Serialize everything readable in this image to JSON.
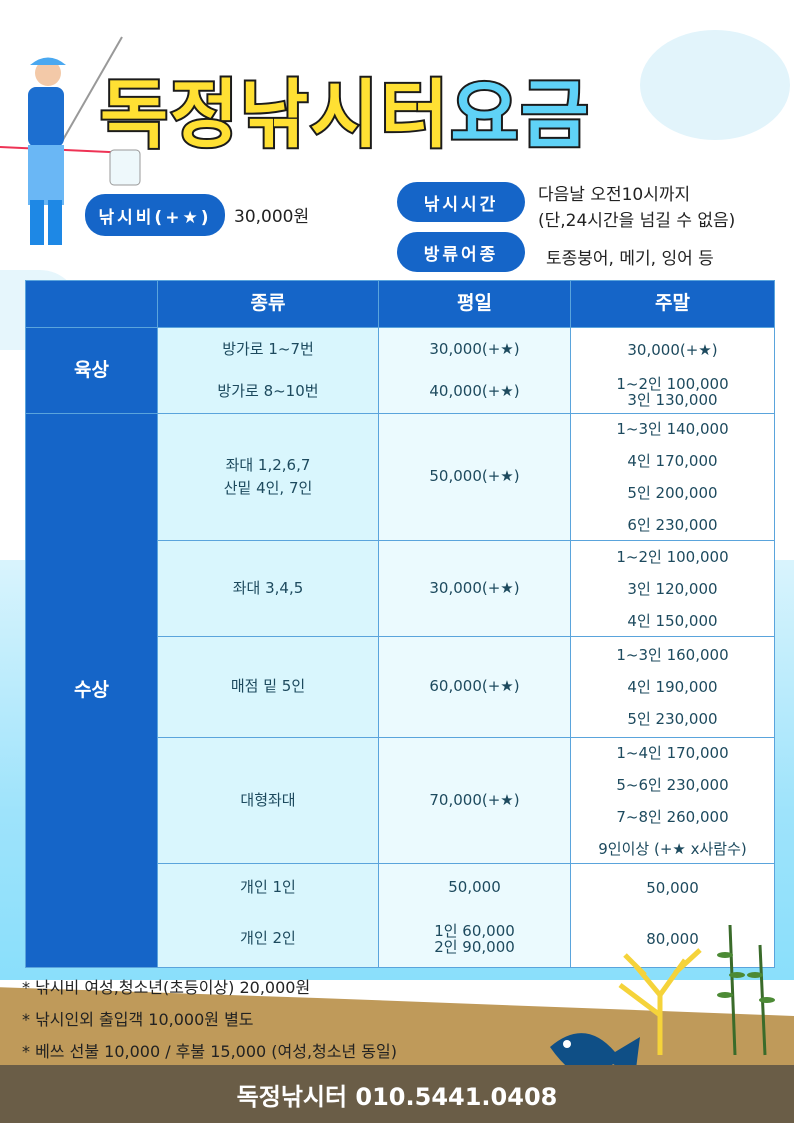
{
  "title": {
    "part1": "독정낚시터",
    "part2": "요금"
  },
  "fee": {
    "label": "낚시비(+★)",
    "value": "30,000원"
  },
  "hours": {
    "label": "낚시시간",
    "line1": "다음날 오전10시까지",
    "line2": "(단,24시간을 넘길 수 없음)"
  },
  "species": {
    "label": "방류어종",
    "value": "토종붕어, 메기, 잉어 등"
  },
  "table": {
    "headers": [
      "종류",
      "평일",
      "주말"
    ],
    "categories": [
      "육상",
      "수상"
    ],
    "rows": [
      {
        "type": "방가로 1~7번",
        "weekday": "30,000(+★)",
        "weekend": [
          "30,000(+★)"
        ]
      },
      {
        "type": "방가로 8~10번",
        "weekday": "40,000(+★)",
        "weekend": [
          "1~2인 100,000",
          "3인 130,000"
        ]
      },
      {
        "type": [
          "좌대 1,2,6,7",
          "산밑 4인, 7인"
        ],
        "weekday": "50,000(+★)",
        "weekend": [
          "1~3인 140,000",
          "4인 170,000",
          "5인 200,000",
          "6인 230,000"
        ]
      },
      {
        "type": "좌대 3,4,5",
        "weekday": "30,000(+★)",
        "weekend": [
          "1~2인 100,000",
          "3인 120,000",
          "4인 150,000"
        ]
      },
      {
        "type": "매점 밑 5인",
        "weekday": "60,000(+★)",
        "weekend": [
          "1~3인 160,000",
          "4인 190,000",
          "5인 230,000"
        ]
      },
      {
        "type": "대형좌대",
        "weekday": "70,000(+★)",
        "weekend": [
          "1~4인 170,000",
          "5~6인 230,000",
          "7~8인 260,000",
          "9인이상 (+★ x사람수)"
        ]
      },
      {
        "type": "개인 1인",
        "weekday": "50,000",
        "weekend": [
          "50,000"
        ]
      },
      {
        "type": "개인 2인",
        "weekday": [
          "1인 60,000",
          "2인 90,000"
        ],
        "weekend": [
          "80,000"
        ]
      }
    ]
  },
  "notes": [
    "* 낚시비 여성,청소년(초등이상) 20,000원",
    "* 낚시인외 출입객 10,000원 별도",
    "* 베쓰 선불 10,000 / 후불 15,000 (여성,청소년 동일)"
  ],
  "footer": "독정낚시터 010.5441.0408",
  "colors": {
    "primary": "#1565c8",
    "title_yellow": "#ffe033",
    "title_blue": "#5fd2f7",
    "footer": "#6a5d47",
    "sand": "#bf9a5a"
  }
}
